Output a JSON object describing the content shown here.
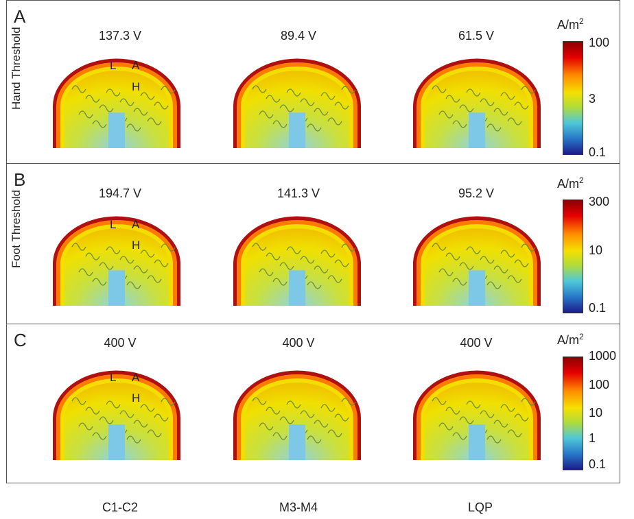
{
  "columns": [
    "C1-C2",
    "M3-M4",
    "LQP"
  ],
  "region_labels": {
    "L": "L",
    "A": "A",
    "H": "H"
  },
  "unit": {
    "base": "A/m",
    "exp": "2"
  },
  "panels": [
    {
      "letter": "A",
      "row_label": "Hand Threshold",
      "voltages": [
        "137.3 V",
        "89.4 V",
        "61.5 V"
      ],
      "ticks": [
        "100",
        "3",
        "0.1"
      ]
    },
    {
      "letter": "B",
      "row_label": "Foot Threshold",
      "voltages": [
        "194.7 V",
        "141.3 V",
        "95.2 V"
      ],
      "ticks": [
        "300",
        "10",
        "0.1"
      ]
    },
    {
      "letter": "C",
      "row_label": "",
      "voltages": [
        "400 V",
        "400 V",
        "400 V"
      ],
      "ticks": [
        "1000",
        "100",
        "10",
        "1",
        "0.1"
      ]
    }
  ],
  "colorbar_colors": [
    "#8b0000",
    "#e60000",
    "#ff8c00",
    "#f5e000",
    "#b0dc3c",
    "#50c8d8",
    "#2878c8",
    "#1c1c8c"
  ]
}
